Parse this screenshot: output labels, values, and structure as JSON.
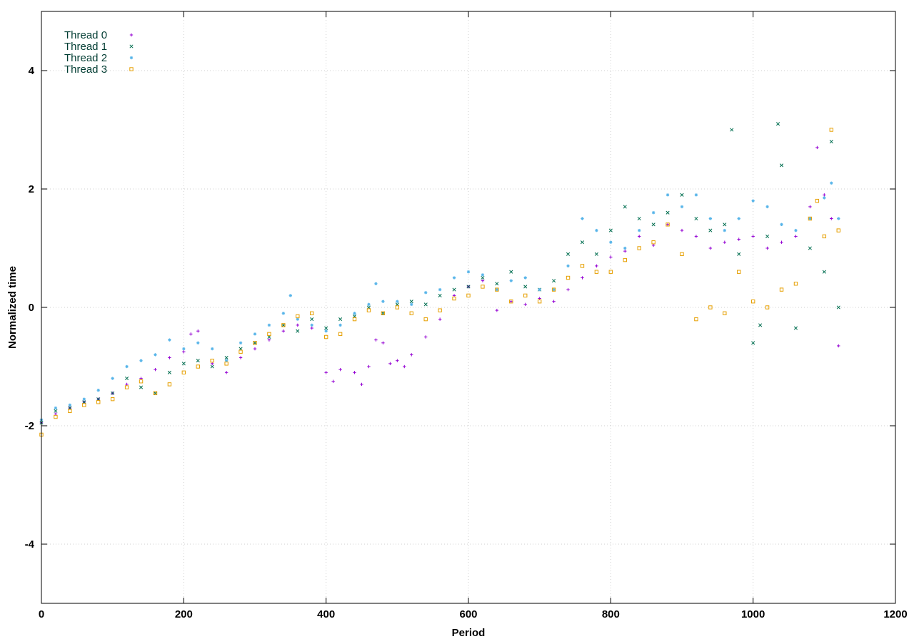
{
  "chart_data": {
    "type": "scatter",
    "title": "",
    "xlabel": "Period",
    "ylabel": "Normalized time",
    "xlim": [
      0,
      1200
    ],
    "ylim": [
      -5,
      5
    ],
    "xticks": [
      0,
      200,
      400,
      600,
      800,
      1000,
      1200
    ],
    "yticks": [
      -4,
      -2,
      0,
      2,
      4
    ],
    "grid": true,
    "legend_position": "top-left",
    "generation_note_free": true,
    "series": [
      {
        "name": "Thread 0",
        "color": "#9400d3",
        "marker": "plus",
        "points": [
          [
            0,
            -1.95
          ],
          [
            20,
            -1.8
          ],
          [
            40,
            -1.7
          ],
          [
            60,
            -1.6
          ],
          [
            80,
            -1.55
          ],
          [
            100,
            -1.45
          ],
          [
            120,
            -1.3
          ],
          [
            140,
            -1.2
          ],
          [
            160,
            -1.05
          ],
          [
            180,
            -0.85
          ],
          [
            200,
            -0.75
          ],
          [
            210,
            -0.45
          ],
          [
            220,
            -0.4
          ],
          [
            240,
            -0.95
          ],
          [
            260,
            -1.1
          ],
          [
            280,
            -0.85
          ],
          [
            300,
            -0.7
          ],
          [
            320,
            -0.55
          ],
          [
            340,
            -0.4
          ],
          [
            360,
            -0.3
          ],
          [
            380,
            -0.35
          ],
          [
            400,
            -1.1
          ],
          [
            410,
            -1.25
          ],
          [
            420,
            -1.05
          ],
          [
            440,
            -1.1
          ],
          [
            450,
            -1.3
          ],
          [
            460,
            -1.0
          ],
          [
            470,
            -0.55
          ],
          [
            480,
            -0.6
          ],
          [
            490,
            -0.95
          ],
          [
            500,
            -0.9
          ],
          [
            510,
            -1.0
          ],
          [
            520,
            -0.8
          ],
          [
            540,
            -0.5
          ],
          [
            560,
            -0.2
          ],
          [
            580,
            0.2
          ],
          [
            600,
            0.35
          ],
          [
            620,
            0.45
          ],
          [
            640,
            -0.05
          ],
          [
            660,
            0.1
          ],
          [
            680,
            0.05
          ],
          [
            700,
            0.15
          ],
          [
            720,
            0.1
          ],
          [
            740,
            0.3
          ],
          [
            760,
            0.5
          ],
          [
            780,
            0.7
          ],
          [
            800,
            0.85
          ],
          [
            820,
            0.95
          ],
          [
            840,
            1.2
          ],
          [
            860,
            1.05
          ],
          [
            880,
            1.4
          ],
          [
            900,
            1.3
          ],
          [
            920,
            1.2
          ],
          [
            940,
            1.0
          ],
          [
            960,
            1.1
          ],
          [
            980,
            1.15
          ],
          [
            1000,
            1.2
          ],
          [
            1020,
            1.0
          ],
          [
            1040,
            1.1
          ],
          [
            1060,
            1.2
          ],
          [
            1080,
            1.7
          ],
          [
            1090,
            2.7
          ],
          [
            1100,
            1.9
          ],
          [
            1110,
            1.5
          ],
          [
            1120,
            -0.65
          ]
        ]
      },
      {
        "name": "Thread 1",
        "color": "#006e50",
        "marker": "cross",
        "points": [
          [
            0,
            -1.95
          ],
          [
            20,
            -1.75
          ],
          [
            40,
            -1.7
          ],
          [
            60,
            -1.6
          ],
          [
            80,
            -1.55
          ],
          [
            100,
            -1.45
          ],
          [
            120,
            -1.2
          ],
          [
            140,
            -1.35
          ],
          [
            160,
            -1.45
          ],
          [
            180,
            -1.1
          ],
          [
            200,
            -0.95
          ],
          [
            220,
            -0.9
          ],
          [
            240,
            -1.0
          ],
          [
            260,
            -0.85
          ],
          [
            280,
            -0.7
          ],
          [
            300,
            -0.6
          ],
          [
            320,
            -0.5
          ],
          [
            340,
            -0.3
          ],
          [
            360,
            -0.4
          ],
          [
            380,
            -0.2
          ],
          [
            400,
            -0.35
          ],
          [
            420,
            -0.2
          ],
          [
            440,
            -0.15
          ],
          [
            460,
            0.0
          ],
          [
            480,
            -0.1
          ],
          [
            500,
            0.05
          ],
          [
            520,
            0.1
          ],
          [
            540,
            0.05
          ],
          [
            560,
            0.2
          ],
          [
            580,
            0.3
          ],
          [
            600,
            0.35
          ],
          [
            620,
            0.5
          ],
          [
            640,
            0.4
          ],
          [
            660,
            0.6
          ],
          [
            680,
            0.35
          ],
          [
            700,
            0.3
          ],
          [
            720,
            0.45
          ],
          [
            740,
            0.9
          ],
          [
            760,
            1.1
          ],
          [
            780,
            0.9
          ],
          [
            800,
            1.3
          ],
          [
            820,
            1.7
          ],
          [
            840,
            1.5
          ],
          [
            860,
            1.4
          ],
          [
            880,
            1.6
          ],
          [
            900,
            1.9
          ],
          [
            920,
            1.5
          ],
          [
            940,
            1.3
          ],
          [
            960,
            1.4
          ],
          [
            970,
            3.0
          ],
          [
            980,
            0.9
          ],
          [
            1000,
            -0.6
          ],
          [
            1010,
            -0.3
          ],
          [
            1020,
            1.2
          ],
          [
            1035,
            3.1
          ],
          [
            1040,
            2.4
          ],
          [
            1060,
            -0.35
          ],
          [
            1080,
            1.0
          ],
          [
            1100,
            0.6
          ],
          [
            1110,
            2.8
          ],
          [
            1120,
            0.0
          ]
        ]
      },
      {
        "name": "Thread 2",
        "color": "#56b4e9",
        "marker": "star",
        "points": [
          [
            0,
            -1.9
          ],
          [
            20,
            -1.7
          ],
          [
            40,
            -1.65
          ],
          [
            60,
            -1.55
          ],
          [
            80,
            -1.4
          ],
          [
            100,
            -1.2
          ],
          [
            120,
            -1.0
          ],
          [
            140,
            -0.9
          ],
          [
            160,
            -0.8
          ],
          [
            180,
            -0.55
          ],
          [
            200,
            -0.7
          ],
          [
            220,
            -0.6
          ],
          [
            240,
            -0.7
          ],
          [
            260,
            -0.9
          ],
          [
            280,
            -0.6
          ],
          [
            300,
            -0.45
          ],
          [
            320,
            -0.3
          ],
          [
            340,
            -0.1
          ],
          [
            350,
            0.2
          ],
          [
            360,
            -0.2
          ],
          [
            380,
            -0.3
          ],
          [
            400,
            -0.4
          ],
          [
            420,
            -0.3
          ],
          [
            440,
            -0.1
          ],
          [
            460,
            0.05
          ],
          [
            470,
            0.4
          ],
          [
            480,
            0.1
          ],
          [
            500,
            0.1
          ],
          [
            520,
            0.05
          ],
          [
            540,
            0.25
          ],
          [
            560,
            0.3
          ],
          [
            580,
            0.5
          ],
          [
            600,
            0.6
          ],
          [
            620,
            0.55
          ],
          [
            640,
            0.3
          ],
          [
            660,
            0.45
          ],
          [
            680,
            0.5
          ],
          [
            700,
            0.3
          ],
          [
            720,
            0.3
          ],
          [
            740,
            0.7
          ],
          [
            760,
            1.5
          ],
          [
            780,
            1.3
          ],
          [
            800,
            1.1
          ],
          [
            820,
            1.0
          ],
          [
            840,
            1.3
          ],
          [
            860,
            1.6
          ],
          [
            880,
            1.9
          ],
          [
            900,
            1.7
          ],
          [
            920,
            1.9
          ],
          [
            940,
            1.5
          ],
          [
            960,
            1.3
          ],
          [
            980,
            1.5
          ],
          [
            1000,
            1.8
          ],
          [
            1020,
            1.7
          ],
          [
            1040,
            1.4
          ],
          [
            1060,
            1.3
          ],
          [
            1080,
            1.5
          ],
          [
            1100,
            1.85
          ],
          [
            1110,
            2.1
          ],
          [
            1120,
            1.5
          ]
        ]
      },
      {
        "name": "Thread 3",
        "color": "#e69f00",
        "marker": "square",
        "points": [
          [
            0,
            -2.15
          ],
          [
            20,
            -1.85
          ],
          [
            40,
            -1.75
          ],
          [
            60,
            -1.65
          ],
          [
            80,
            -1.6
          ],
          [
            100,
            -1.55
          ],
          [
            120,
            -1.35
          ],
          [
            140,
            -1.25
          ],
          [
            160,
            -1.45
          ],
          [
            180,
            -1.3
          ],
          [
            200,
            -1.1
          ],
          [
            220,
            -1.0
          ],
          [
            240,
            -0.9
          ],
          [
            260,
            -0.95
          ],
          [
            280,
            -0.75
          ],
          [
            300,
            -0.6
          ],
          [
            320,
            -0.45
          ],
          [
            340,
            -0.3
          ],
          [
            360,
            -0.15
          ],
          [
            380,
            -0.1
          ],
          [
            400,
            -0.5
          ],
          [
            420,
            -0.45
          ],
          [
            440,
            -0.2
          ],
          [
            460,
            -0.05
          ],
          [
            480,
            -0.1
          ],
          [
            500,
            0.0
          ],
          [
            520,
            -0.1
          ],
          [
            540,
            -0.2
          ],
          [
            560,
            -0.05
          ],
          [
            580,
            0.15
          ],
          [
            600,
            0.2
          ],
          [
            620,
            0.35
          ],
          [
            640,
            0.3
          ],
          [
            660,
            0.1
          ],
          [
            680,
            0.2
          ],
          [
            700,
            0.1
          ],
          [
            720,
            0.3
          ],
          [
            740,
            0.5
          ],
          [
            760,
            0.7
          ],
          [
            780,
            0.6
          ],
          [
            800,
            0.6
          ],
          [
            820,
            0.8
          ],
          [
            840,
            1.0
          ],
          [
            860,
            1.1
          ],
          [
            880,
            1.4
          ],
          [
            900,
            0.9
          ],
          [
            920,
            -0.2
          ],
          [
            940,
            0.0
          ],
          [
            960,
            -0.1
          ],
          [
            980,
            0.6
          ],
          [
            1000,
            0.1
          ],
          [
            1020,
            0.0
          ],
          [
            1040,
            0.3
          ],
          [
            1060,
            0.4
          ],
          [
            1080,
            1.5
          ],
          [
            1090,
            1.8
          ],
          [
            1100,
            1.2
          ],
          [
            1110,
            3.0
          ],
          [
            1120,
            1.3
          ]
        ]
      }
    ]
  }
}
